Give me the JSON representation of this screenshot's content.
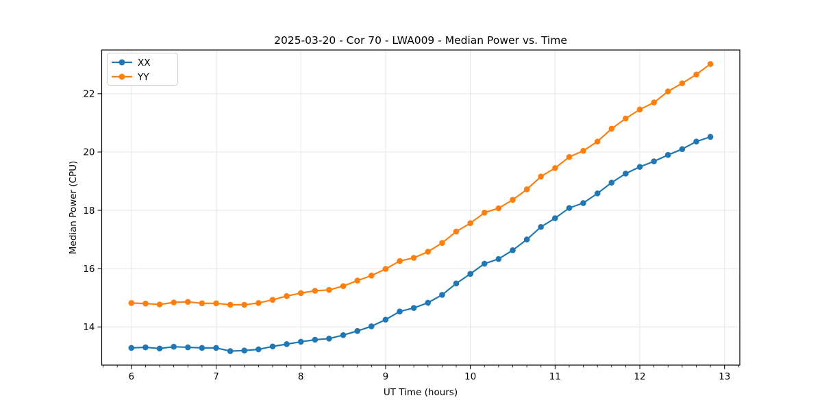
{
  "chart_data": {
    "type": "line",
    "title": "2025-03-20 - Cor 70 - LWA009 - Median Power vs. Time",
    "xlabel": "UT Time (hours)",
    "ylabel": "Median Power (CPU)",
    "xlim": [
      5.65,
      13.18
    ],
    "ylim": [
      12.69,
      23.5
    ],
    "xticks": [
      6,
      7,
      8,
      9,
      10,
      11,
      12,
      13
    ],
    "yticks": [
      14,
      16,
      18,
      20,
      22
    ],
    "x_minor_step_hours": 0.166667,
    "grid": true,
    "background": "#ffffff",
    "grid_color": "#e6e6e6",
    "spine_color": "#000000",
    "marker": "circle",
    "legend": {
      "position": "upper-left",
      "entries": [
        "XX",
        "YY"
      ]
    },
    "x": [
      6.0,
      6.167,
      6.333,
      6.5,
      6.667,
      6.833,
      7.0,
      7.167,
      7.333,
      7.5,
      7.667,
      7.833,
      8.0,
      8.167,
      8.333,
      8.5,
      8.667,
      8.833,
      9.0,
      9.167,
      9.333,
      9.5,
      9.667,
      9.833,
      10.0,
      10.167,
      10.333,
      10.5,
      10.667,
      10.833,
      11.0,
      11.167,
      11.333,
      11.5,
      11.667,
      11.833,
      12.0,
      12.167,
      12.333,
      12.5,
      12.667,
      12.833
    ],
    "series": [
      {
        "name": "XX",
        "color": "#1f77b4",
        "values": [
          13.28,
          13.3,
          13.26,
          13.32,
          13.3,
          13.28,
          13.28,
          13.17,
          13.19,
          13.23,
          13.33,
          13.41,
          13.49,
          13.56,
          13.6,
          13.72,
          13.86,
          14.02,
          14.25,
          14.53,
          14.65,
          14.83,
          15.1,
          15.49,
          15.82,
          16.17,
          16.33,
          16.63,
          17.0,
          17.43,
          17.73,
          18.08,
          18.25,
          18.58,
          18.95,
          19.26,
          19.49,
          19.68,
          19.9,
          20.1,
          20.36,
          20.52
        ]
      },
      {
        "name": "YY",
        "color": "#ff7f0e",
        "values": [
          14.82,
          14.8,
          14.77,
          14.84,
          14.86,
          14.81,
          14.81,
          14.76,
          14.76,
          14.82,
          14.93,
          15.06,
          15.16,
          15.24,
          15.27,
          15.4,
          15.59,
          15.76,
          15.99,
          16.26,
          16.37,
          16.58,
          16.88,
          17.27,
          17.56,
          17.92,
          18.07,
          18.36,
          18.72,
          19.16,
          19.45,
          19.83,
          20.04,
          20.36,
          20.8,
          21.15,
          21.46,
          21.7,
          22.08,
          22.36,
          22.66,
          23.02
        ]
      }
    ]
  }
}
